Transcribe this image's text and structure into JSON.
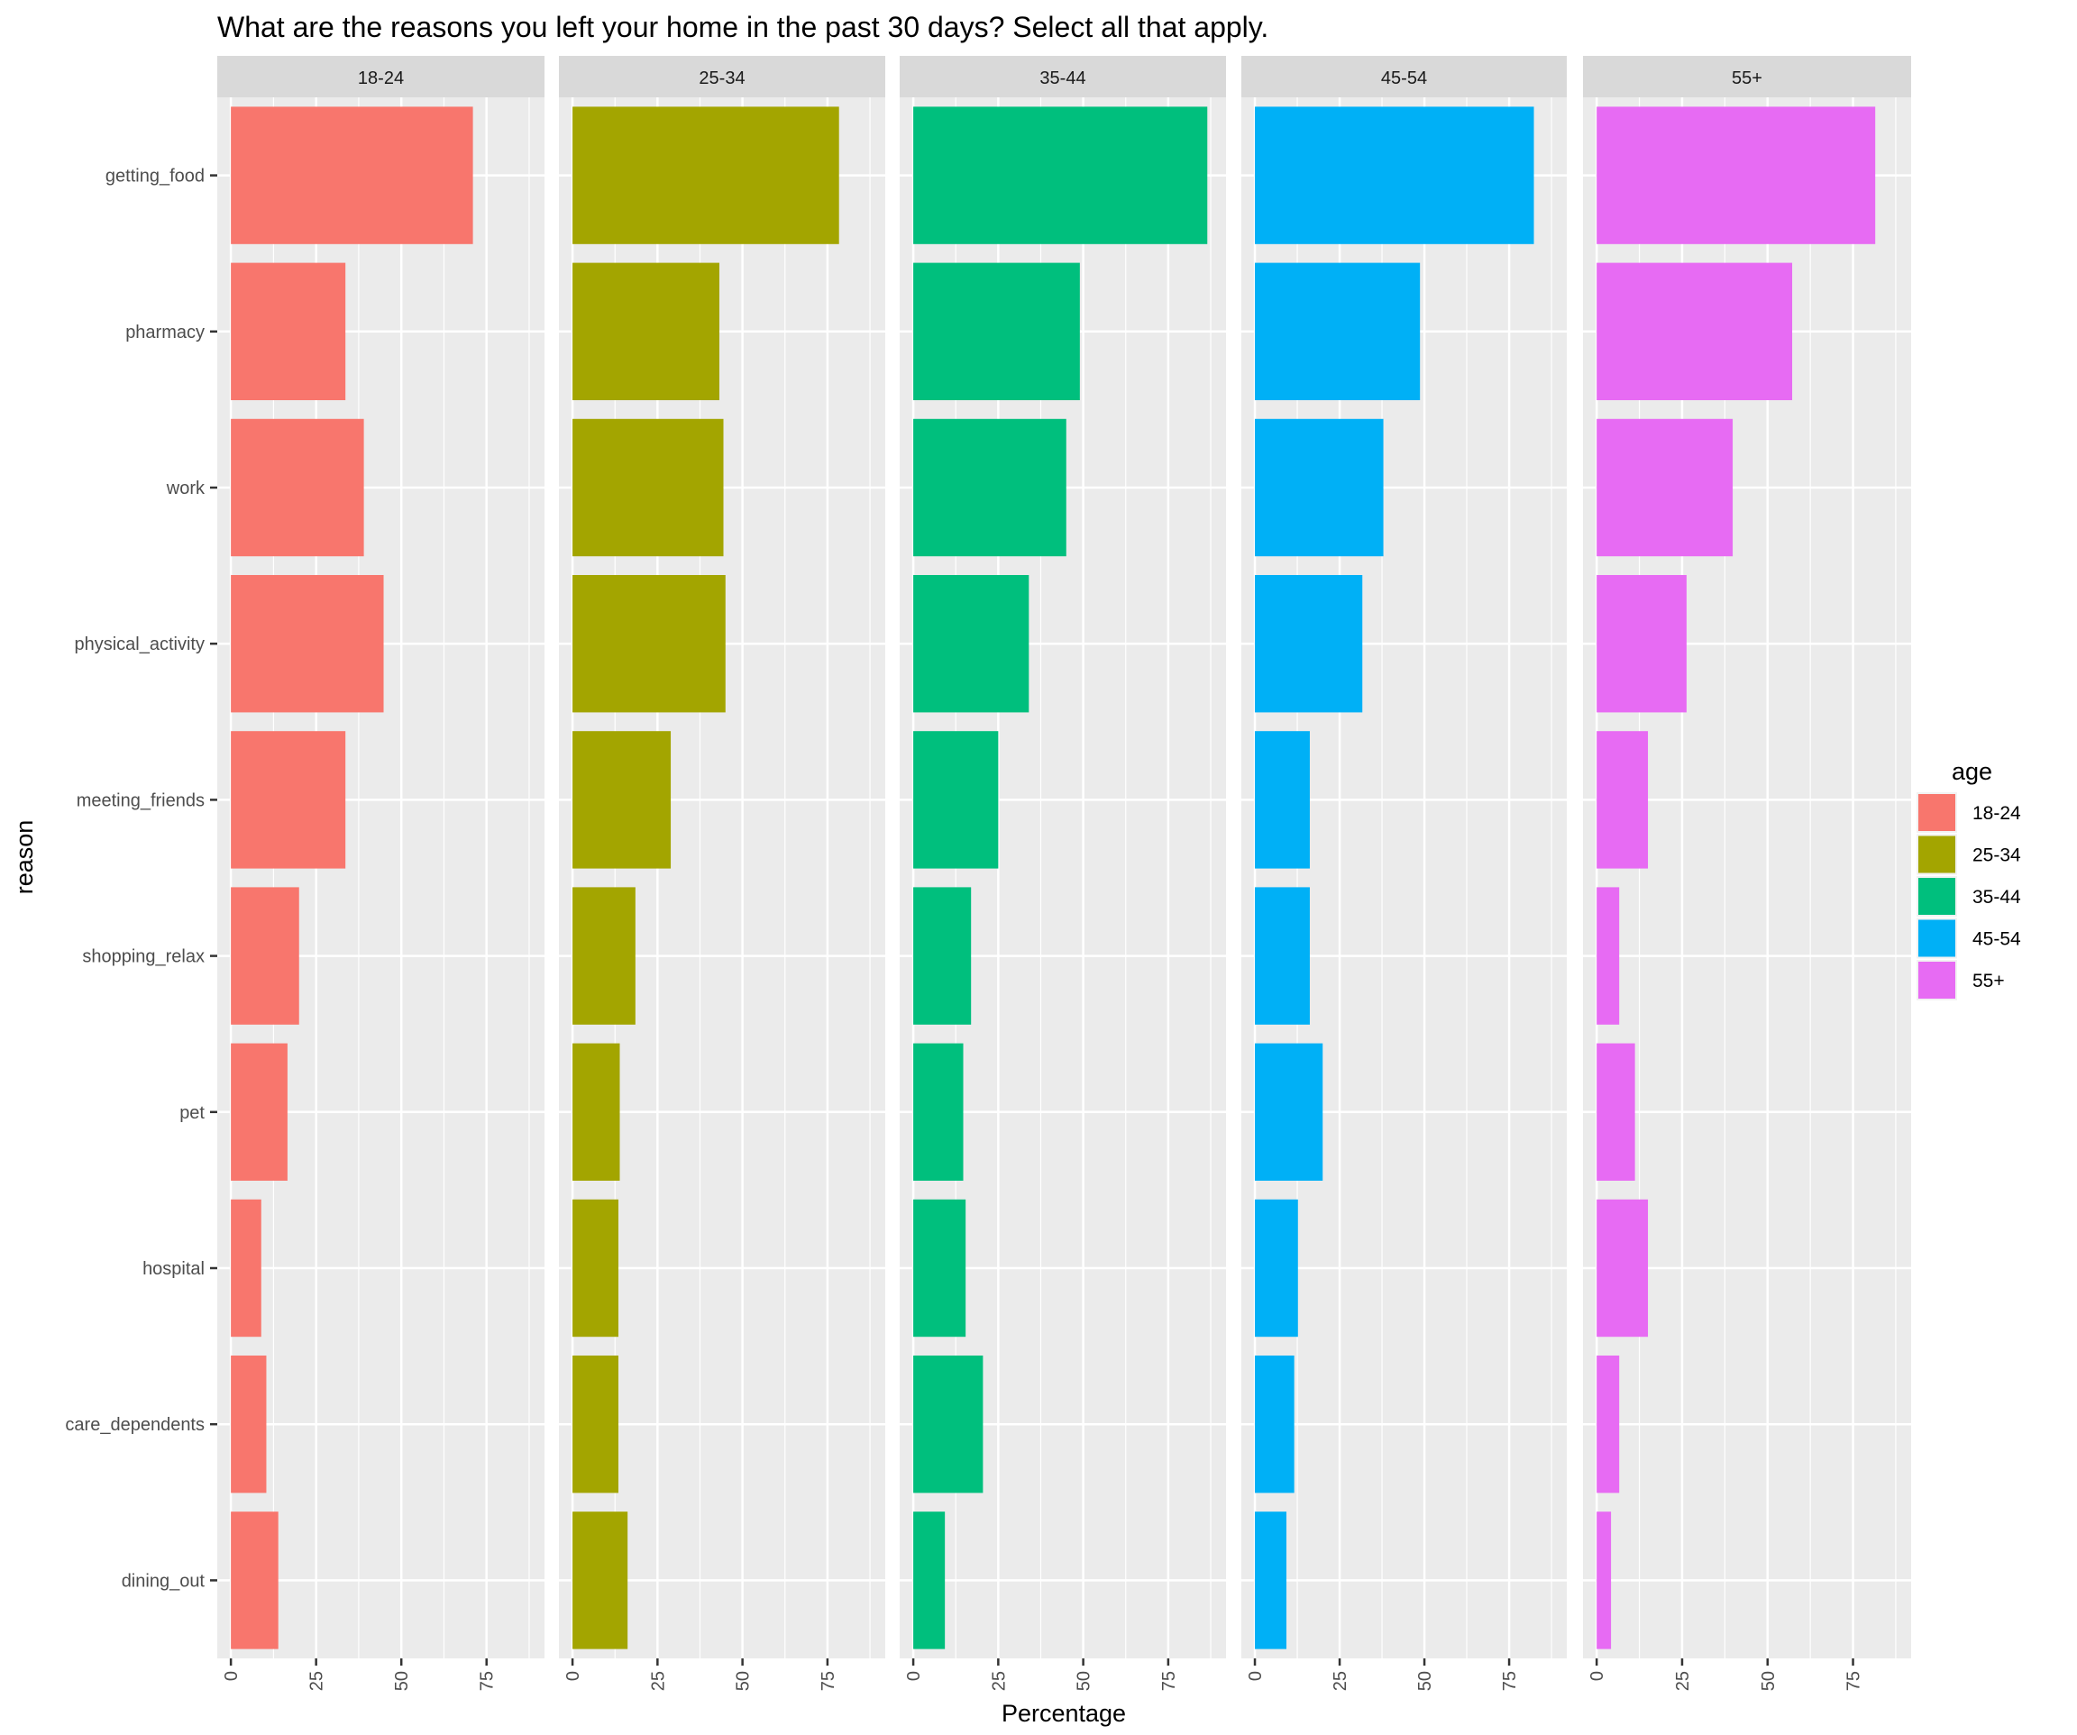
{
  "chart_data": {
    "type": "bar",
    "orientation": "horizontal",
    "faceted": true,
    "title": "What are the reasons you left your home in the past 30 days? Select all that apply.",
    "xlabel": "Percentage",
    "ylabel": "reason",
    "xlim": [
      -4,
      92
    ],
    "xticks": [
      0,
      25,
      50,
      75
    ],
    "grid": true,
    "legend_title": "age",
    "legend_position": "right",
    "categories": [
      "getting_food",
      "pharmacy",
      "work",
      "physical_activity",
      "meeting_friends",
      "shopping_relax",
      "pet",
      "hospital",
      "care_dependents",
      "dining_out"
    ],
    "series": [
      {
        "name": "18-24",
        "color": "#F8766D",
        "values": [
          71.0,
          33.6,
          39.0,
          44.8,
          33.6,
          20.0,
          16.6,
          8.9,
          10.4,
          13.9
        ]
      },
      {
        "name": "25-34",
        "color": "#A3A500",
        "values": [
          78.4,
          43.2,
          44.4,
          45.0,
          28.9,
          18.5,
          13.9,
          13.5,
          13.5,
          16.2
        ]
      },
      {
        "name": "35-44",
        "color": "#00BF7D",
        "values": [
          86.5,
          49.0,
          45.0,
          34.0,
          25.0,
          17.0,
          14.7,
          15.4,
          20.5,
          9.3
        ]
      },
      {
        "name": "45-54",
        "color": "#00B0F6",
        "values": [
          82.3,
          48.7,
          37.9,
          31.7,
          16.2,
          16.2,
          20.0,
          12.7,
          11.6,
          9.3
        ]
      },
      {
        "name": "55+",
        "color": "#E76BF3",
        "values": [
          81.5,
          57.2,
          39.8,
          26.3,
          15.0,
          6.6,
          11.2,
          15.0,
          6.6,
          4.2
        ]
      }
    ]
  }
}
